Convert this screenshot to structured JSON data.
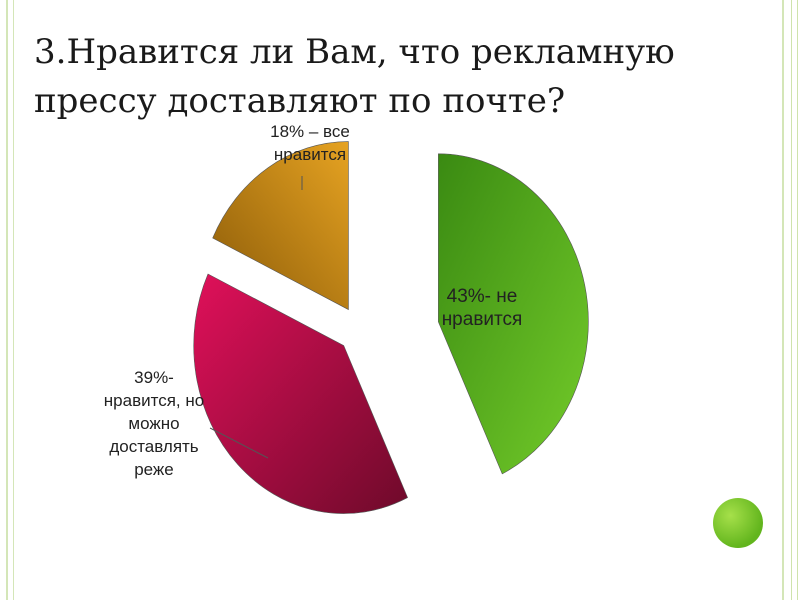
{
  "slide": {
    "title": "3.Нравится ли Вам, что рекламную\nпрессу доставляют по почте?"
  },
  "colors": {
    "green": "#4fa41b",
    "crimson": "#b0123f",
    "amber": "#c48a10",
    "accent_dot": "#7cc52c",
    "frame": "#d4e6b8"
  },
  "chart_data": {
    "type": "pie",
    "title": "",
    "slices": [
      {
        "label": "43%- не нравится",
        "value": 43,
        "color": "#4fa41b"
      },
      {
        "label": "39%- нравится, но можно доставлять реже",
        "value": 39,
        "color": "#b0123f"
      },
      {
        "label": "18% – все нравится",
        "value": 18,
        "color": "#c48a10"
      }
    ],
    "exploded": true,
    "legend": "none"
  }
}
